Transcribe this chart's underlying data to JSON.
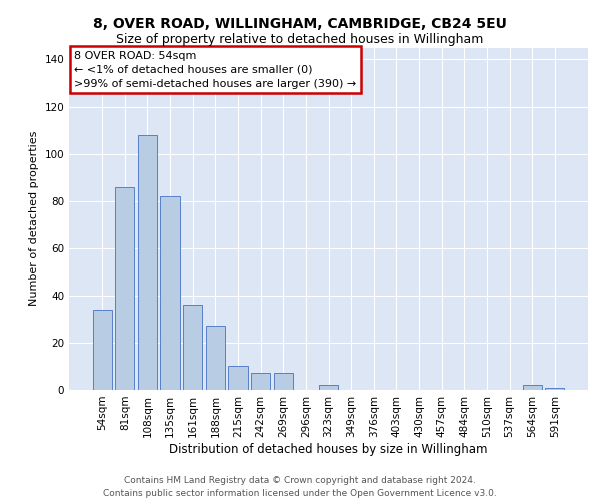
{
  "title": "8, OVER ROAD, WILLINGHAM, CAMBRIDGE, CB24 5EU",
  "subtitle": "Size of property relative to detached houses in Willingham",
  "xlabel": "Distribution of detached houses by size in Willingham",
  "ylabel": "Number of detached properties",
  "categories": [
    "54sqm",
    "81sqm",
    "108sqm",
    "135sqm",
    "161sqm",
    "188sqm",
    "215sqm",
    "242sqm",
    "269sqm",
    "296sqm",
    "323sqm",
    "349sqm",
    "376sqm",
    "403sqm",
    "430sqm",
    "457sqm",
    "484sqm",
    "510sqm",
    "537sqm",
    "564sqm",
    "591sqm"
  ],
  "values": [
    34,
    86,
    108,
    82,
    36,
    27,
    10,
    7,
    7,
    0,
    2,
    0,
    0,
    0,
    0,
    0,
    0,
    0,
    0,
    2,
    1
  ],
  "bar_color": "#b8cce4",
  "bar_edge_color": "#4472c4",
  "annotation_box_text": "8 OVER ROAD: 54sqm\n← <1% of detached houses are smaller (0)\n>99% of semi-detached houses are larger (390) →",
  "annotation_box_color": "#ffffff",
  "annotation_box_edge_color": "#cc0000",
  "ylim": [
    0,
    145
  ],
  "yticks": [
    0,
    20,
    40,
    60,
    80,
    100,
    120,
    140
  ],
  "background_color": "#dce6f5",
  "footer_line1": "Contains HM Land Registry data © Crown copyright and database right 2024.",
  "footer_line2": "Contains public sector information licensed under the Open Government Licence v3.0.",
  "title_fontsize": 10,
  "subtitle_fontsize": 9,
  "xlabel_fontsize": 8.5,
  "ylabel_fontsize": 8,
  "tick_fontsize": 7.5,
  "annotation_fontsize": 8,
  "footer_fontsize": 6.5
}
